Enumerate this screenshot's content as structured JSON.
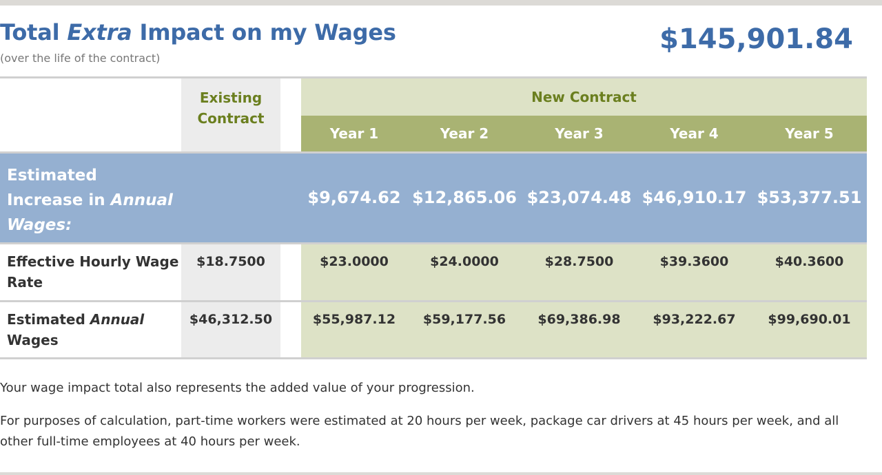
{
  "header": {
    "title_prefix": "Total ",
    "title_emphasis": "Extra",
    "title_suffix": " Impact on my Wages",
    "subtitle": "(over the life of the contract)",
    "total": "$145,901.84"
  },
  "table": {
    "existing_header_line1": "Existing",
    "existing_header_line2": "Contract",
    "new_contract_header": "New Contract",
    "years": [
      "Year 1",
      "Year 2",
      "Year 3",
      "Year 4",
      "Year 5"
    ],
    "increase_row": {
      "label_line1": "Estimated",
      "label_line2_prefix": "Increase in ",
      "label_line2_emphasis": "Annual",
      "label_line3": "Wages:",
      "values": [
        "$9,674.62",
        "$12,865.06",
        "$23,074.48",
        "$46,910.17",
        "$53,377.51"
      ]
    },
    "hourly_row": {
      "label_line1": "Effective Hourly Wage",
      "label_line2": "Rate",
      "existing": "$18.7500",
      "values": [
        "$23.0000",
        "$24.0000",
        "$28.7500",
        "$39.3600",
        "$40.3600"
      ]
    },
    "annual_row": {
      "label_prefix": "Estimated ",
      "label_emphasis": "Annual",
      "label_line2": "Wages",
      "existing": "$46,312.50",
      "values": [
        "$55,987.12",
        "$59,177.56",
        "$69,386.98",
        "$93,222.67",
        "$99,690.01"
      ]
    }
  },
  "notes": {
    "line1": "Your wage impact total also represents the added value of your progression.",
    "line2": "For purposes of calculation, part-time workers were estimated at 20 hours per week, package car drivers at 45 hours per week, and all other full-time employees at 40 hours per week."
  },
  "colors": {
    "accent_blue": "#3d6ba8",
    "olive_text": "#6b7f1f",
    "new_contract_light": "#dde2c6",
    "new_contract_dark": "#a9b373",
    "increase_row_blue": "#95b0d1",
    "existing_gray": "#ececec"
  }
}
